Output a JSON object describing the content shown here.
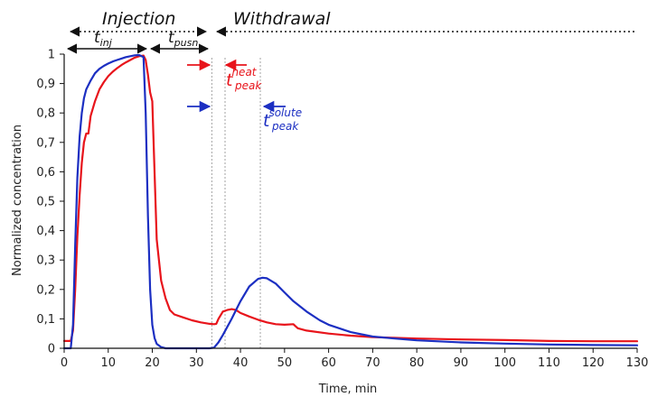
{
  "chart_data": {
    "type": "line",
    "xlabel": "Time, min",
    "ylabel": "Normalized concentration",
    "xlim": [
      0,
      130
    ],
    "ylim": [
      0,
      1
    ],
    "x_ticks": [
      0,
      10,
      20,
      30,
      40,
      50,
      60,
      70,
      80,
      90,
      100,
      110,
      120,
      130
    ],
    "x_tick_labels": [
      "0",
      "10",
      "20",
      "30",
      "40",
      "50",
      "60",
      "70",
      "80",
      "90",
      "100",
      "110",
      "120",
      "130"
    ],
    "y_ticks": [
      0,
      0.1,
      0.2,
      0.3,
      0.4,
      0.5,
      0.6,
      0.7,
      0.8,
      0.9,
      1.0
    ],
    "y_tick_labels": [
      "0",
      "0,1",
      "0,2",
      "0,3",
      "0,4",
      "0,5",
      "0,6",
      "0,7",
      "0,8",
      "0,9",
      "1"
    ],
    "grid": false,
    "colors": {
      "red": "#e8141b",
      "blue": "#1c2fc2",
      "guide": "#9a9a9a"
    },
    "series": [
      {
        "color": "#e8141b",
        "x": [
          0,
          1.5,
          2,
          2.5,
          3,
          3.5,
          4,
          4.5,
          5,
          5.5,
          6,
          7,
          8,
          9,
          10,
          11,
          12,
          13,
          14,
          15,
          16,
          17,
          18,
          18.5,
          19,
          19.5,
          20,
          20.5,
          21,
          22,
          23,
          24,
          25,
          27,
          29,
          31,
          33,
          34,
          34.5,
          35,
          36,
          37,
          38,
          39,
          40,
          42,
          44,
          46,
          48,
          50,
          52,
          52.5,
          53,
          55,
          60,
          65,
          70,
          80,
          90,
          100,
          110,
          120,
          130
        ],
        "y": [
          0.025,
          0.025,
          0.06,
          0.2,
          0.38,
          0.52,
          0.63,
          0.7,
          0.73,
          0.73,
          0.79,
          0.84,
          0.88,
          0.905,
          0.925,
          0.94,
          0.952,
          0.963,
          0.972,
          0.98,
          0.988,
          0.993,
          0.995,
          0.98,
          0.93,
          0.87,
          0.84,
          0.6,
          0.37,
          0.23,
          0.17,
          0.13,
          0.115,
          0.105,
          0.095,
          0.088,
          0.083,
          0.082,
          0.083,
          0.1,
          0.125,
          0.13,
          0.133,
          0.13,
          0.12,
          0.108,
          0.097,
          0.088,
          0.082,
          0.08,
          0.082,
          0.075,
          0.068,
          0.06,
          0.05,
          0.043,
          0.038,
          0.033,
          0.03,
          0.028,
          0.025,
          0.024,
          0.024
        ]
      },
      {
        "color": "#1c2fc2",
        "x": [
          0,
          1.5,
          2,
          2.5,
          3,
          3.5,
          4,
          4.5,
          5,
          6,
          7,
          8,
          9,
          10,
          11,
          12,
          13,
          14,
          15,
          16,
          17,
          18,
          18.5,
          19,
          19.5,
          20,
          20.5,
          21,
          22,
          23,
          25,
          28,
          31,
          33,
          34,
          35,
          36,
          38,
          40,
          42,
          44,
          45,
          46,
          48,
          50,
          52,
          55,
          58,
          60,
          65,
          70,
          75,
          80,
          90,
          100,
          110,
          120,
          130
        ],
        "y": [
          0,
          0,
          0.08,
          0.35,
          0.58,
          0.72,
          0.8,
          0.85,
          0.88,
          0.91,
          0.935,
          0.95,
          0.96,
          0.968,
          0.975,
          0.98,
          0.985,
          0.99,
          0.993,
          0.996,
          0.997,
          0.99,
          0.8,
          0.45,
          0.2,
          0.08,
          0.035,
          0.015,
          0.004,
          0,
          0,
          0,
          0,
          0,
          0.002,
          0.02,
          0.045,
          0.1,
          0.16,
          0.21,
          0.236,
          0.24,
          0.238,
          0.22,
          0.19,
          0.16,
          0.125,
          0.095,
          0.08,
          0.055,
          0.04,
          0.033,
          0.027,
          0.02,
          0.016,
          0.013,
          0.011,
          0.01
        ]
      }
    ],
    "guides_x": [
      33.5,
      36.5,
      44.5
    ],
    "annotations": {
      "phase_injection": "Injection",
      "phase_withdrawal": "Withdrawal",
      "t_inj": {
        "base": "t",
        "sub": "inj"
      },
      "t_push": {
        "base": "t",
        "sub": "pusn"
      },
      "t_peak_heat": {
        "base": "t",
        "sub": "peak",
        "sup": "heat"
      },
      "t_peak_solute": {
        "base": "t",
        "sub": "peak",
        "sup": "solute"
      }
    }
  }
}
